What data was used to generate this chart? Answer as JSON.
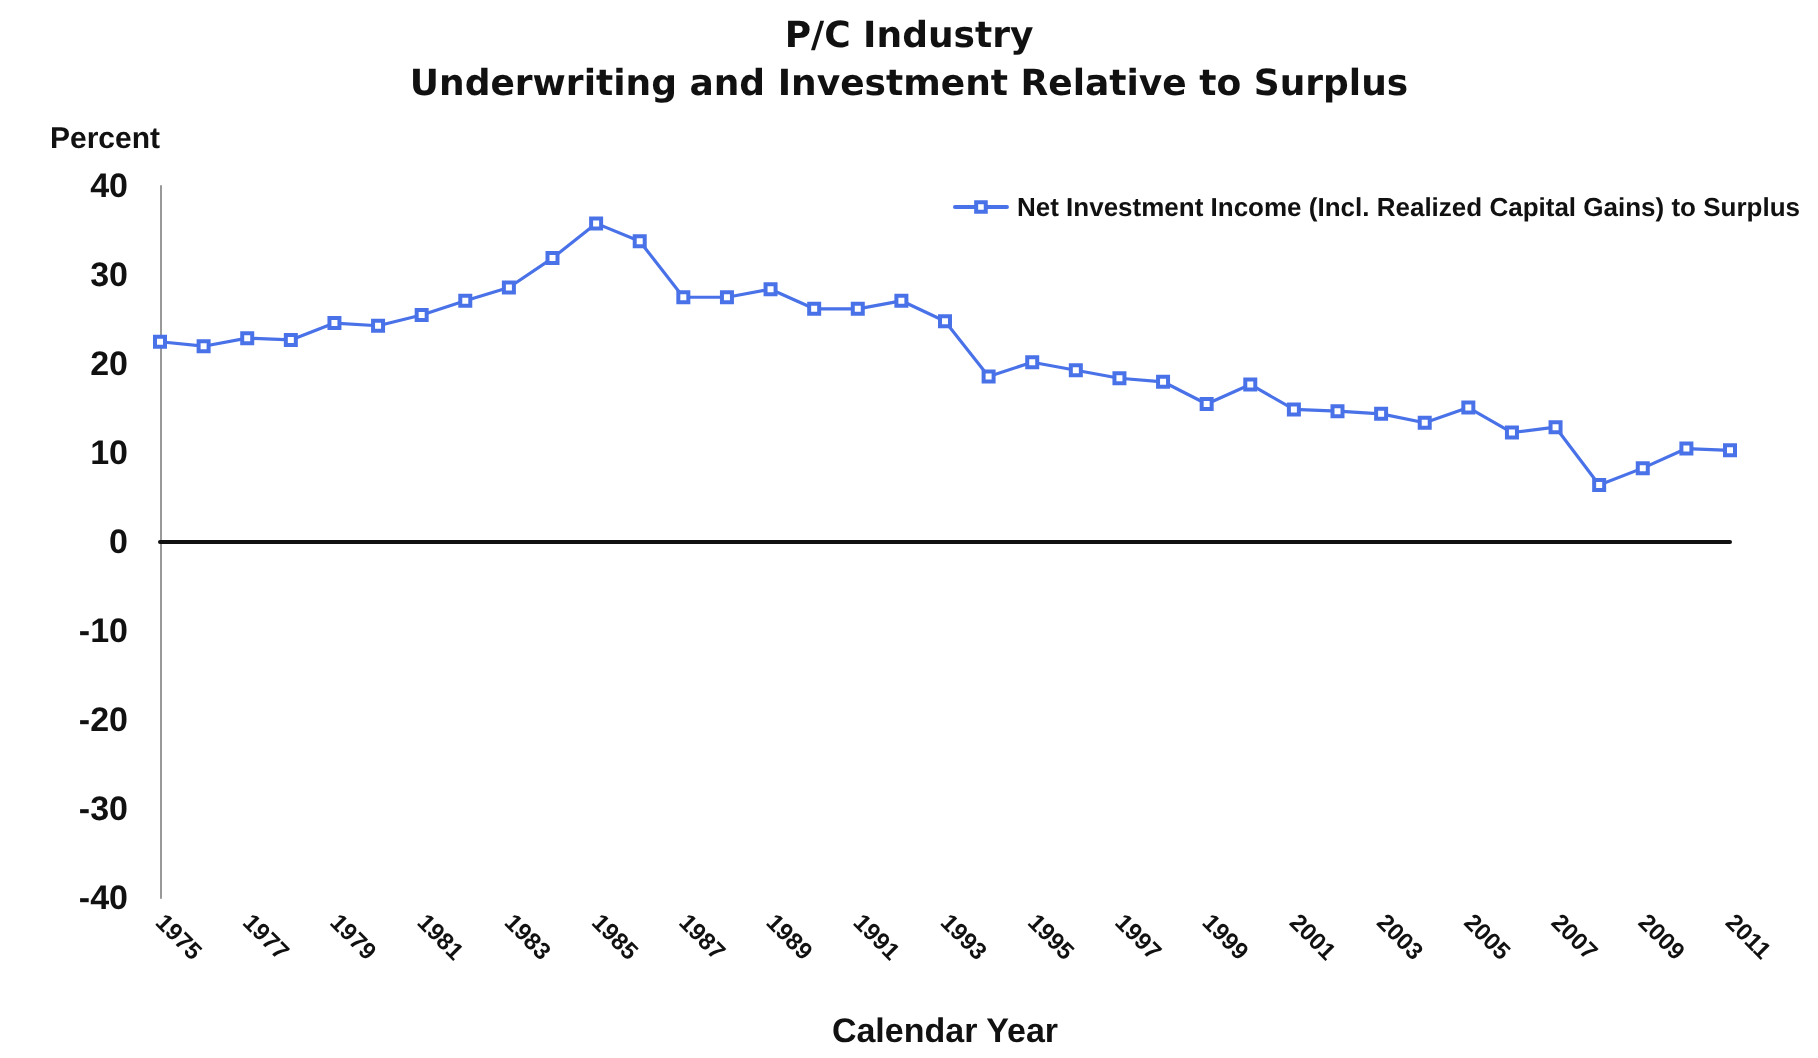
{
  "chart_data": {
    "type": "line",
    "title": "P/C Industry",
    "subtitle": "Underwriting and Investment Relative to Surplus",
    "xlabel": "Calendar Year",
    "ylabel": "Percent",
    "categories": [
      "1975",
      null,
      "1977",
      null,
      "1979",
      null,
      "1981",
      null,
      "1983",
      null,
      "1985",
      null,
      "1987",
      null,
      "1989",
      null,
      "1991",
      null,
      "1993",
      null,
      "1995",
      null,
      "1997",
      null,
      "1999",
      null,
      "2001",
      null,
      "2003",
      null,
      "2005",
      null,
      "2007",
      null,
      "2009",
      null,
      "2011"
    ],
    "series": [
      {
        "name": "Net Investment Income (Incl. Realized Capital Gains) to Surplus",
        "color": "#4a72e8",
        "values": [
          22.5,
          22.0,
          22.9,
          22.7,
          24.6,
          24.3,
          25.5,
          27.1,
          28.6,
          31.9,
          35.8,
          33.8,
          27.5,
          27.5,
          28.4,
          26.2,
          26.2,
          27.1,
          24.8,
          18.6,
          20.2,
          19.3,
          18.4,
          18.0,
          15.5,
          17.7,
          14.9,
          14.7,
          14.4,
          13.4,
          15.1,
          12.3,
          12.9,
          6.4,
          8.3,
          10.5,
          10.3
        ]
      }
    ],
    "ylim": [
      -40,
      40
    ],
    "yticks": [
      -40,
      -30,
      -20,
      -10,
      0,
      10,
      20,
      30,
      40
    ],
    "legend": "top right",
    "marker": "square",
    "line_style": "solid"
  }
}
